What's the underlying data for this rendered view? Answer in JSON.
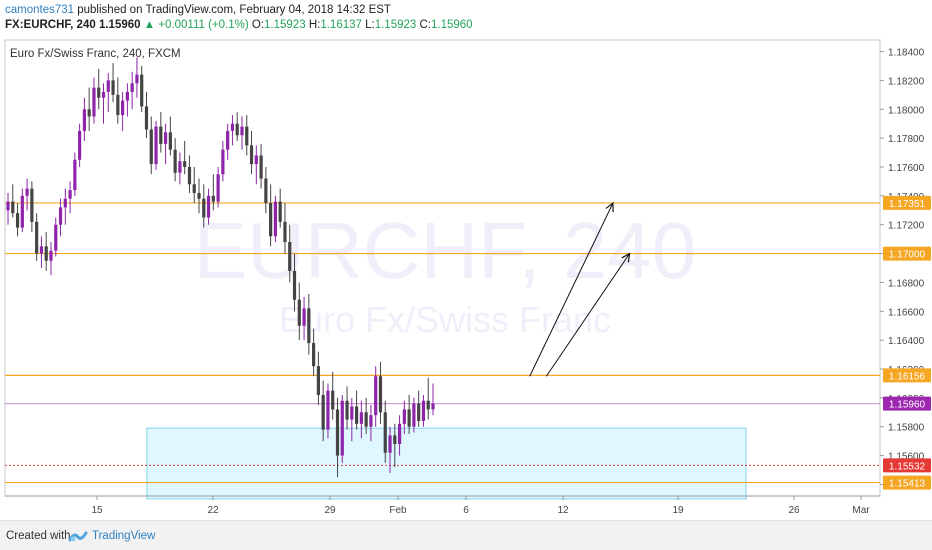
{
  "header": {
    "author": "camontes731",
    "published_text": "published on TradingView.com, February 04, 2018 14:32 EST",
    "symbol": "FX:EURCHF, 240",
    "last": "1.15960",
    "change": "+0.00111 (+0.1%)",
    "o_label": "O:",
    "o_value": "1.15923",
    "h_label": "H:",
    "h_value": "1.16137",
    "l_label": "L:",
    "l_value": "1.15923",
    "c_label": "C:",
    "c_value": "1.15960"
  },
  "footer": {
    "created_with": "Created with",
    "brand": "TradingView"
  },
  "chart_data": {
    "type": "candlestick",
    "title": "Euro Fx/Swiss Franc, 240, FXCM",
    "watermark_symbol": "EURCHF, 240",
    "watermark_name": "Euro Fx/Swiss Franc",
    "x_ticks": [
      "15",
      "22",
      "29",
      "Feb",
      "6",
      "12",
      "19",
      "26",
      "Mar"
    ],
    "y_ticks": [
      "1.18400",
      "1.18200",
      "1.18000",
      "1.17800",
      "1.17600",
      "1.17400",
      "1.17200",
      "1.17000",
      "1.16800",
      "1.16600",
      "1.16400",
      "1.16200",
      "1.16000",
      "1.15800",
      "1.15600",
      "1.15400"
    ],
    "ylim": [
      1.1532,
      1.1848
    ],
    "horizontal_levels": [
      {
        "label": "1.17351",
        "value": 1.17351,
        "color": "#f5a623",
        "style": "solid"
      },
      {
        "label": "1.17000",
        "value": 1.17,
        "color": "#f5a623",
        "style": "solid"
      },
      {
        "label": "1.16156",
        "value": 1.16156,
        "color": "#f5a623",
        "style": "solid"
      },
      {
        "label": "1.15960",
        "value": 1.1596,
        "color": "#9c27b0",
        "style": "solid"
      },
      {
        "label": "1.15532",
        "value": 1.15532,
        "color": "#e53935",
        "style": "dotted"
      },
      {
        "label": "1.15413",
        "value": 1.15413,
        "color": "#f5a623",
        "style": "solid"
      }
    ],
    "zone": {
      "from_date": "Jan 18",
      "to_date": "Feb 23",
      "low": 1.153,
      "high": 1.1579,
      "color": "#bfefff"
    },
    "arrows": [
      {
        "from_date": "Feb 10",
        "from_price": 1.1615,
        "to_date": "Feb 15",
        "to_price": 1.1735
      },
      {
        "from_date": "Feb 11",
        "from_price": 1.1615,
        "to_date": "Feb 16",
        "to_price": 1.17
      }
    ],
    "colors": {
      "up": "#8e24aa",
      "down": "#444444",
      "level": "#f5a623",
      "last_price": "#9c27b0",
      "zone": "#bfefff"
    },
    "ohlc_estimated": [
      [
        1.173,
        1.1742,
        1.172,
        1.1736
      ],
      [
        1.1736,
        1.1748,
        1.1725,
        1.1728
      ],
      [
        1.1728,
        1.1735,
        1.1712,
        1.1718
      ],
      [
        1.1718,
        1.1745,
        1.1715,
        1.174
      ],
      [
        1.174,
        1.1752,
        1.173,
        1.1745
      ],
      [
        1.1745,
        1.175,
        1.1715,
        1.1722
      ],
      [
        1.1722,
        1.1728,
        1.1695,
        1.17
      ],
      [
        1.17,
        1.1712,
        1.169,
        1.1705
      ],
      [
        1.1705,
        1.1715,
        1.1688,
        1.1695
      ],
      [
        1.1695,
        1.1708,
        1.1685,
        1.1702
      ],
      [
        1.1702,
        1.1725,
        1.1698,
        1.172
      ],
      [
        1.172,
        1.1738,
        1.1712,
        1.1732
      ],
      [
        1.1732,
        1.1745,
        1.172,
        1.1738
      ],
      [
        1.1738,
        1.175,
        1.1728,
        1.1744
      ],
      [
        1.1744,
        1.177,
        1.174,
        1.1765
      ],
      [
        1.1765,
        1.179,
        1.176,
        1.1785
      ],
      [
        1.1785,
        1.1808,
        1.1778,
        1.18
      ],
      [
        1.18,
        1.1815,
        1.1785,
        1.1795
      ],
      [
        1.1795,
        1.1822,
        1.179,
        1.1815
      ],
      [
        1.1815,
        1.1828,
        1.18,
        1.1808
      ],
      [
        1.1808,
        1.1818,
        1.179,
        1.1812
      ],
      [
        1.1812,
        1.1825,
        1.1798,
        1.182
      ],
      [
        1.182,
        1.1832,
        1.1805,
        1.181
      ],
      [
        1.181,
        1.1822,
        1.179,
        1.1796
      ],
      [
        1.1796,
        1.1812,
        1.1785,
        1.1806
      ],
      [
        1.1806,
        1.1818,
        1.1795,
        1.1812
      ],
      [
        1.1812,
        1.1826,
        1.18,
        1.1818
      ],
      [
        1.1818,
        1.1836,
        1.1808,
        1.1824
      ],
      [
        1.1824,
        1.183,
        1.1798,
        1.1802
      ],
      [
        1.1802,
        1.1812,
        1.178,
        1.1786
      ],
      [
        1.1786,
        1.1795,
        1.1755,
        1.1762
      ],
      [
        1.1762,
        1.1792,
        1.1758,
        1.1788
      ],
      [
        1.1788,
        1.1798,
        1.177,
        1.1776
      ],
      [
        1.1776,
        1.179,
        1.1762,
        1.1784
      ],
      [
        1.1784,
        1.1795,
        1.1768,
        1.1772
      ],
      [
        1.1772,
        1.178,
        1.175,
        1.1756
      ],
      [
        1.1756,
        1.177,
        1.1748,
        1.1764
      ],
      [
        1.1764,
        1.1778,
        1.1755,
        1.176
      ],
      [
        1.176,
        1.1768,
        1.1742,
        1.1748
      ],
      [
        1.1748,
        1.176,
        1.1735,
        1.1742
      ],
      [
        1.1742,
        1.1752,
        1.1728,
        1.1738
      ],
      [
        1.1738,
        1.1748,
        1.1718,
        1.1725
      ],
      [
        1.1725,
        1.1745,
        1.172,
        1.174
      ],
      [
        1.174,
        1.1755,
        1.173,
        1.1736
      ],
      [
        1.1736,
        1.176,
        1.1732,
        1.1755
      ],
      [
        1.1755,
        1.1778,
        1.175,
        1.1772
      ],
      [
        1.1772,
        1.179,
        1.1765,
        1.1785
      ],
      [
        1.1785,
        1.1796,
        1.1775,
        1.179
      ],
      [
        1.179,
        1.1798,
        1.1778,
        1.1782
      ],
      [
        1.1782,
        1.1795,
        1.1772,
        1.1788
      ],
      [
        1.1788,
        1.1796,
        1.1768,
        1.1775
      ],
      [
        1.1775,
        1.1785,
        1.1755,
        1.1762
      ],
      [
        1.1762,
        1.1775,
        1.1748,
        1.1768
      ],
      [
        1.1768,
        1.1776,
        1.1745,
        1.1752
      ],
      [
        1.1752,
        1.176,
        1.1728,
        1.1735
      ],
      [
        1.1735,
        1.1748,
        1.1705,
        1.1712
      ],
      [
        1.1712,
        1.174,
        1.1708,
        1.1736
      ],
      [
        1.1736,
        1.1745,
        1.1718,
        1.1722
      ],
      [
        1.1722,
        1.1735,
        1.17,
        1.1708
      ],
      [
        1.1708,
        1.172,
        1.168,
        1.1688
      ],
      [
        1.1688,
        1.17,
        1.166,
        1.1668
      ],
      [
        1.1668,
        1.168,
        1.164,
        1.165
      ],
      [
        1.165,
        1.167,
        1.164,
        1.1662
      ],
      [
        1.1662,
        1.1672,
        1.163,
        1.1638
      ],
      [
        1.1638,
        1.1648,
        1.1615,
        1.1622
      ],
      [
        1.1622,
        1.1632,
        1.1595,
        1.1602
      ],
      [
        1.1602,
        1.1612,
        1.157,
        1.1578
      ],
      [
        1.1578,
        1.161,
        1.1572,
        1.1605
      ],
      [
        1.1605,
        1.1618,
        1.1585,
        1.1592
      ],
      [
        1.1592,
        1.16,
        1.1545,
        1.156
      ],
      [
        1.156,
        1.1602,
        1.1555,
        1.1598
      ],
      [
        1.1598,
        1.1608,
        1.1578,
        1.1585
      ],
      [
        1.1585,
        1.16,
        1.157,
        1.1594
      ],
      [
        1.1594,
        1.1605,
        1.1578,
        1.1582
      ],
      [
        1.1582,
        1.1598,
        1.1572,
        1.159
      ],
      [
        1.159,
        1.16,
        1.1575,
        1.158
      ],
      [
        1.158,
        1.1595,
        1.157,
        1.1588
      ],
      [
        1.1588,
        1.1622,
        1.158,
        1.1615
      ],
      [
        1.1615,
        1.1625,
        1.1582,
        1.159
      ],
      [
        1.159,
        1.1598,
        1.1555,
        1.1562
      ],
      [
        1.1562,
        1.158,
        1.1548,
        1.1574
      ],
      [
        1.1574,
        1.1582,
        1.1552,
        1.1568
      ],
      [
        1.1568,
        1.1588,
        1.156,
        1.1582
      ],
      [
        1.1582,
        1.1598,
        1.1575,
        1.1592
      ],
      [
        1.1592,
        1.1602,
        1.1575,
        1.158
      ],
      [
        1.158,
        1.16,
        1.1576,
        1.1596
      ],
      [
        1.1596,
        1.1605,
        1.158,
        1.1584
      ],
      [
        1.1584,
        1.1602,
        1.158,
        1.1598
      ],
      [
        1.1598,
        1.1614,
        1.1585,
        1.1592
      ],
      [
        1.1592,
        1.161,
        1.1588,
        1.1596
      ]
    ]
  }
}
